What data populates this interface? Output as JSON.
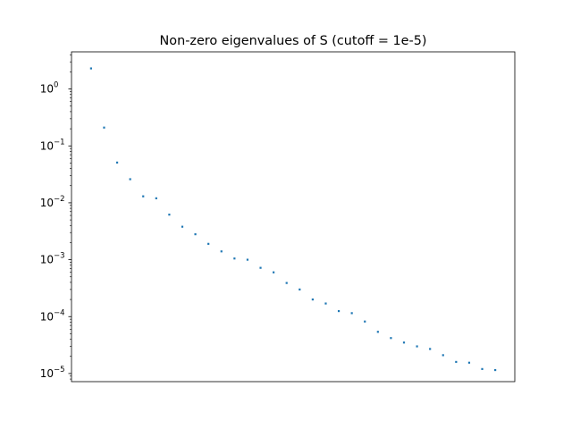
{
  "chart_data": {
    "type": "scatter",
    "title": "Non-zero eigenvalues of S (cutoff = 1e-5)",
    "xlabel": "",
    "ylabel": "",
    "yscale": "log",
    "ylim": [
      7.2e-06,
      4.5
    ],
    "xlim": [
      -1.5,
      32.5
    ],
    "x_ticks_shown": false,
    "y_ticks": [
      {
        "value": 1,
        "label": "10",
        "exp": "0"
      },
      {
        "value": 0.1,
        "label": "10",
        "exp": "−1"
      },
      {
        "value": 0.01,
        "label": "10",
        "exp": "−2"
      },
      {
        "value": 0.001,
        "label": "10",
        "exp": "−3"
      },
      {
        "value": 0.0001,
        "label": "10",
        "exp": "−4"
      },
      {
        "value": 1e-05,
        "label": "10",
        "exp": "−5"
      }
    ],
    "marker_color": "#1f77b4",
    "series": [
      {
        "x": [
          0,
          1,
          2,
          3,
          4,
          5,
          6,
          7,
          8,
          9,
          10,
          11,
          12,
          13,
          14,
          15,
          16,
          17,
          18,
          19,
          20,
          21,
          22,
          23,
          24,
          25,
          26,
          27,
          28,
          29,
          30,
          31
        ],
        "values": [
          2.3,
          0.21,
          0.051,
          0.026,
          0.013,
          0.012,
          0.0062,
          0.0038,
          0.0028,
          0.0019,
          0.0014,
          0.00105,
          0.001,
          0.00072,
          0.0006,
          0.00039,
          0.0003,
          0.0002,
          0.00017,
          0.000125,
          0.000115,
          8.2e-05,
          5.4e-05,
          4.2e-05,
          3.5e-05,
          3e-05,
          2.7e-05,
          2.1e-05,
          1.6e-05,
          1.55e-05,
          1.2e-05,
          1.15e-05
        ]
      }
    ]
  }
}
